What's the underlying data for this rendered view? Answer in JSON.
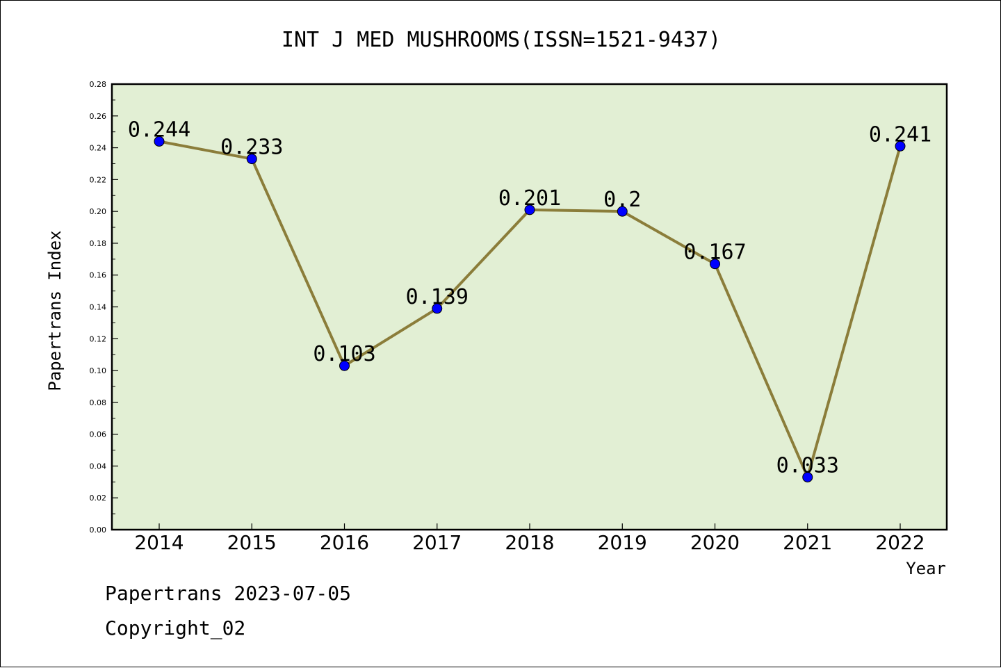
{
  "chart_data": {
    "type": "line",
    "title": "INT J MED MUSHROOMS(ISSN=1521-9437)",
    "xlabel": "Year",
    "ylabel": "Papertrans Index",
    "categories": [
      "2014",
      "2015",
      "2016",
      "2017",
      "2018",
      "2019",
      "2020",
      "2021",
      "2022"
    ],
    "values": [
      0.244,
      0.233,
      0.103,
      0.139,
      0.201,
      0.2,
      0.167,
      0.033,
      0.241
    ],
    "data_labels": [
      "0.244",
      "0.233",
      "0.103",
      "0.139",
      "0.201",
      "0.2",
      "0.167",
      "0.033",
      "0.241"
    ],
    "ylim": [
      0,
      0.28
    ],
    "yticks": [
      "0.00",
      "0.02",
      "0.04",
      "0.06",
      "0.08",
      "0.10",
      "0.12",
      "0.14",
      "0.16",
      "0.18",
      "0.20",
      "0.22",
      "0.24",
      "0.26",
      "0.28"
    ],
    "grid": false,
    "legend": "none",
    "colors": {
      "plot_background": "#e2efd4",
      "line": "#8b7d3a",
      "marker": "#0000ff"
    }
  },
  "footer": {
    "line1": "Papertrans 2023-07-05",
    "line2": "Copyright_02"
  }
}
